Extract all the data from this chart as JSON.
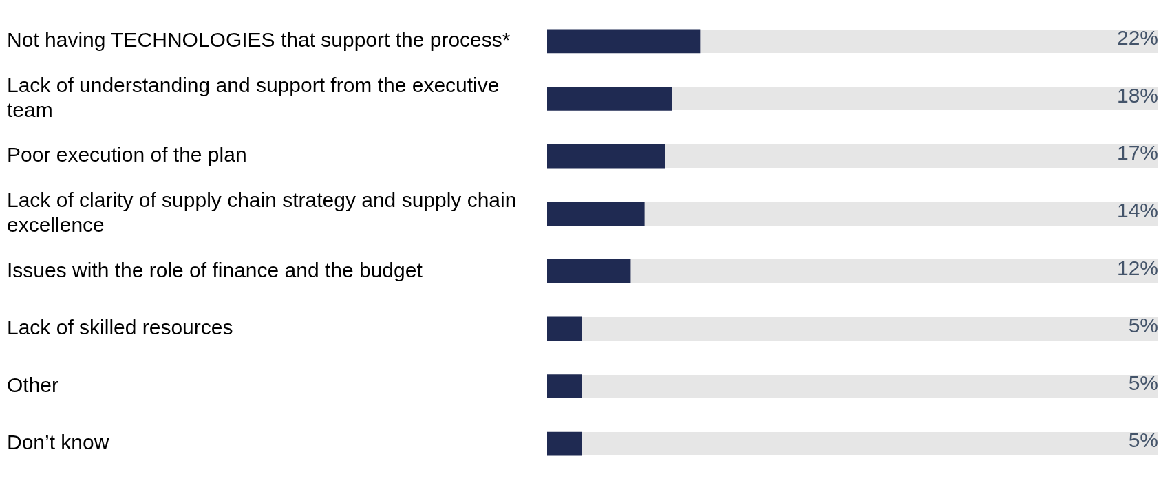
{
  "chart_data": {
    "type": "bar",
    "orientation": "horizontal",
    "tick_labels": "y",
    "categories": [
      "Not having TECHNOLOGIES that support the process*",
      "Lack of understanding and support from the executive team",
      "Poor execution of the plan",
      "Lack of clarity of supply chain strategy and supply chain excellence",
      "Issues with the role of finance and the budget",
      "Lack of skilled resources",
      "Other",
      "Don’t know"
    ],
    "values": [
      22,
      18,
      17,
      14,
      12,
      5,
      5,
      5
    ],
    "value_labels": [
      "22%",
      "18%",
      "17%",
      "14%",
      "12%",
      "5%",
      "5%",
      "5%"
    ],
    "color": "#1f2a52",
    "grid": false,
    "legend": false
  }
}
